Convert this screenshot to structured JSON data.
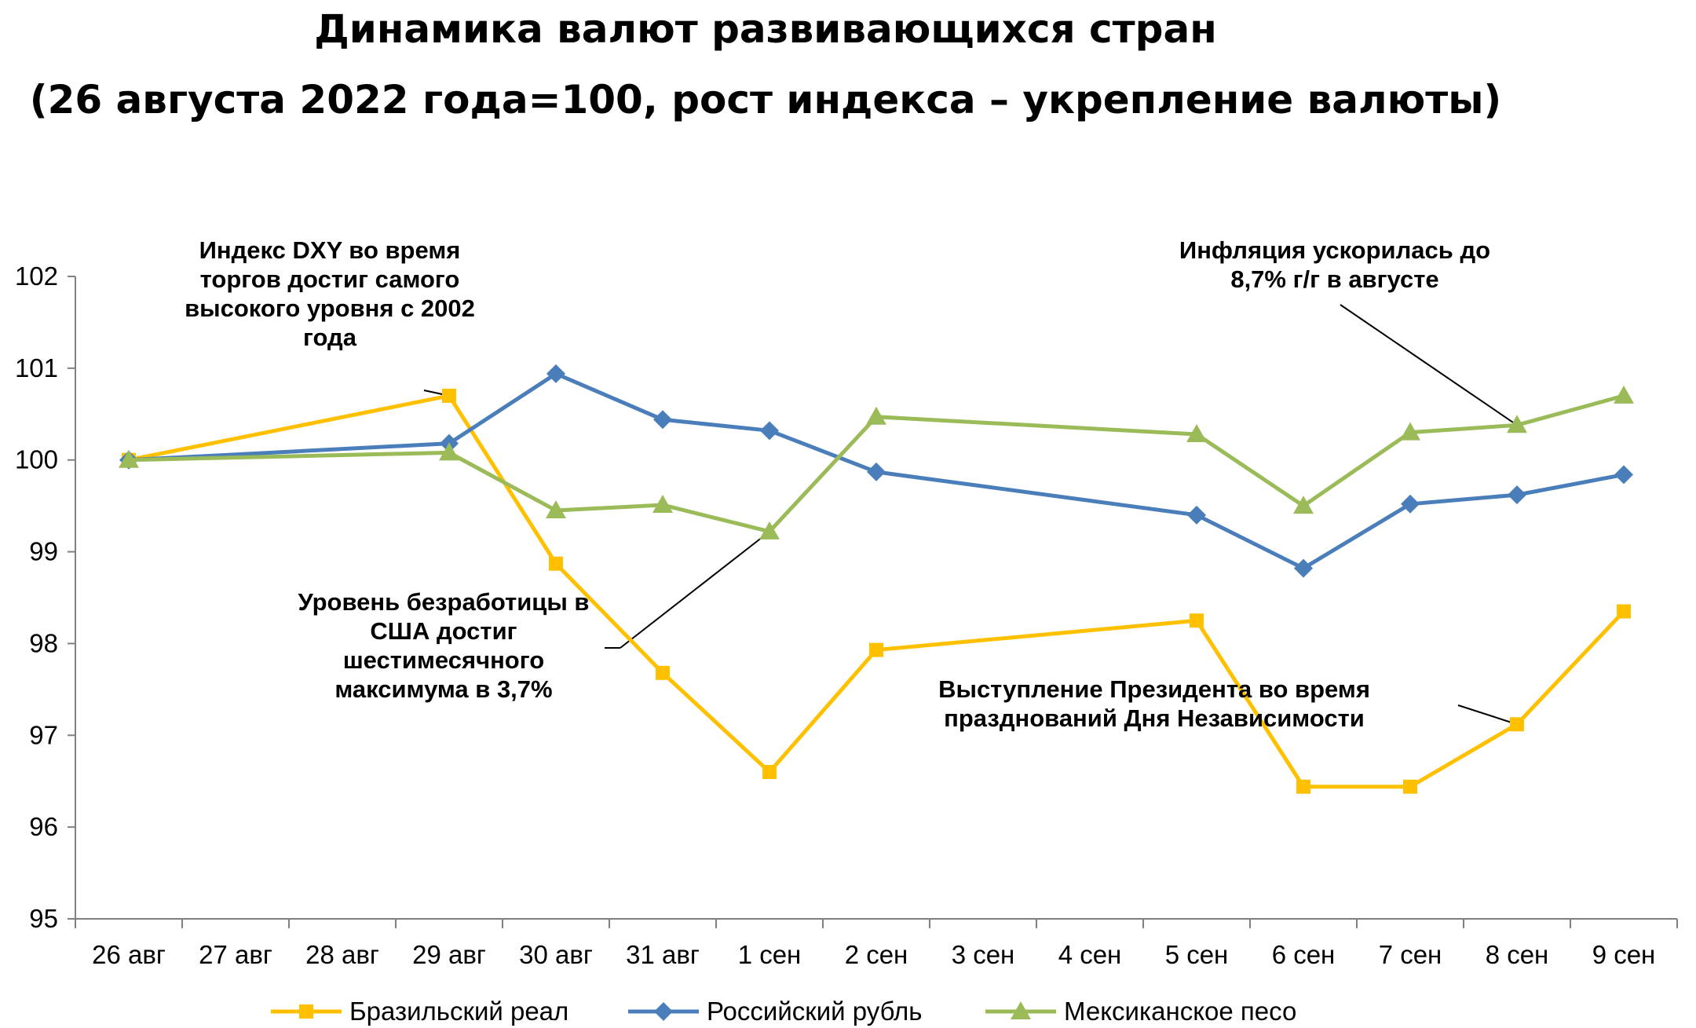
{
  "chart_data": {
    "type": "line",
    "title": "Динамика валют развивающихся стран",
    "subtitle": "(26 августа 2022 года=100, рост индекса – укрепление валюты)",
    "categories": [
      "26 авг",
      "27 авг",
      "28 авг",
      "29 авг",
      "30 авг",
      "31 авг",
      "1 сен",
      "2 сен",
      "3 сен",
      "4 сен",
      "5 сен",
      "6 сен",
      "7 сен",
      "8 сен",
      "9 сен"
    ],
    "ylim": [
      95,
      102
    ],
    "yticks": [
      "95",
      "96",
      "97",
      "98",
      "99",
      "100",
      "101",
      "102"
    ],
    "series": [
      {
        "name": "Бразильский реал",
        "color": "#FFC000",
        "marker": "square",
        "values": [
          100,
          null,
          null,
          100.7,
          98.87,
          97.68,
          96.6,
          97.93,
          null,
          null,
          98.25,
          96.44,
          96.44,
          97.12,
          98.35
        ]
      },
      {
        "name": "Российский рубль",
        "color": "#4A7EBB",
        "marker": "diamond",
        "values": [
          100,
          null,
          null,
          100.18,
          100.94,
          100.44,
          100.32,
          99.87,
          null,
          null,
          99.4,
          98.82,
          99.52,
          99.62,
          99.84
        ]
      },
      {
        "name": "Мексиканское песо",
        "color": "#9BBB59",
        "marker": "triangle",
        "values": [
          100,
          null,
          null,
          100.08,
          99.45,
          99.51,
          99.22,
          100.47,
          null,
          null,
          100.28,
          99.5,
          100.3,
          100.38,
          100.7
        ]
      }
    ],
    "annotations": [
      {
        "text": "Индекс DXY во время торгов достиг самого высокого уровня с 2002 года",
        "target": {
          "category": "29 авг",
          "value": 100.7
        }
      },
      {
        "text": "Уровень безработицы в США достиг шестимесячного максимума в 3,7%",
        "target": {
          "category": "1 сен",
          "value": 99.22
        }
      },
      {
        "text": "Инфляция ускорилась до 8,7% г/г в августе",
        "target": {
          "category": "8 сен",
          "value": 100.38
        }
      },
      {
        "text": "Выступление Президента во время празднований Дня Независимости",
        "target": {
          "category": "8 сен",
          "value": 97.12
        }
      }
    ],
    "legend": "bottom",
    "grid": false
  }
}
